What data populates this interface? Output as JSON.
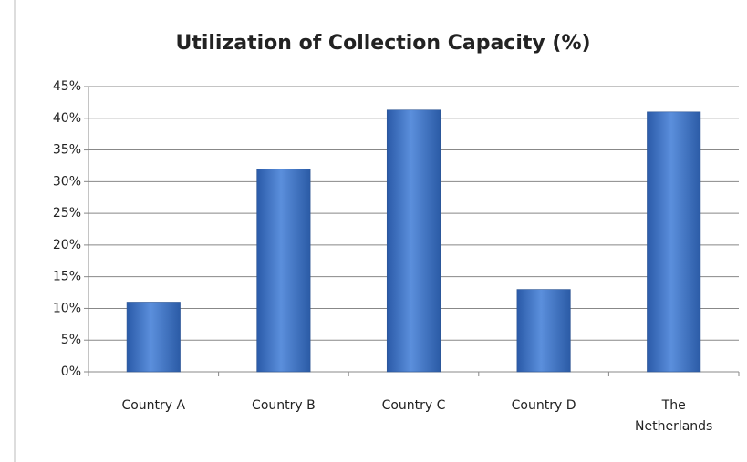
{
  "chart_data": {
    "type": "bar",
    "title": "Utilization of Collection Capacity (%)",
    "categories": [
      "Country A",
      "Country B",
      "Country C",
      "Country D",
      "The Netherlands"
    ],
    "values": [
      11,
      32,
      41.3,
      13,
      41
    ],
    "color": "#3f73c0",
    "ylim": [
      0,
      45
    ],
    "yticks": [
      {
        "value": 0,
        "label": "0%"
      },
      {
        "value": 5,
        "label": "5%"
      },
      {
        "value": 10,
        "label": "10%"
      },
      {
        "value": 15,
        "label": "15%"
      },
      {
        "value": 20,
        "label": "20%"
      },
      {
        "value": 25,
        "label": "25%"
      },
      {
        "value": 30,
        "label": "30%"
      },
      {
        "value": 35,
        "label": "35%"
      },
      {
        "value": 40,
        "label": "40%"
      },
      {
        "value": 45,
        "label": "45%"
      }
    ],
    "grid": true
  }
}
